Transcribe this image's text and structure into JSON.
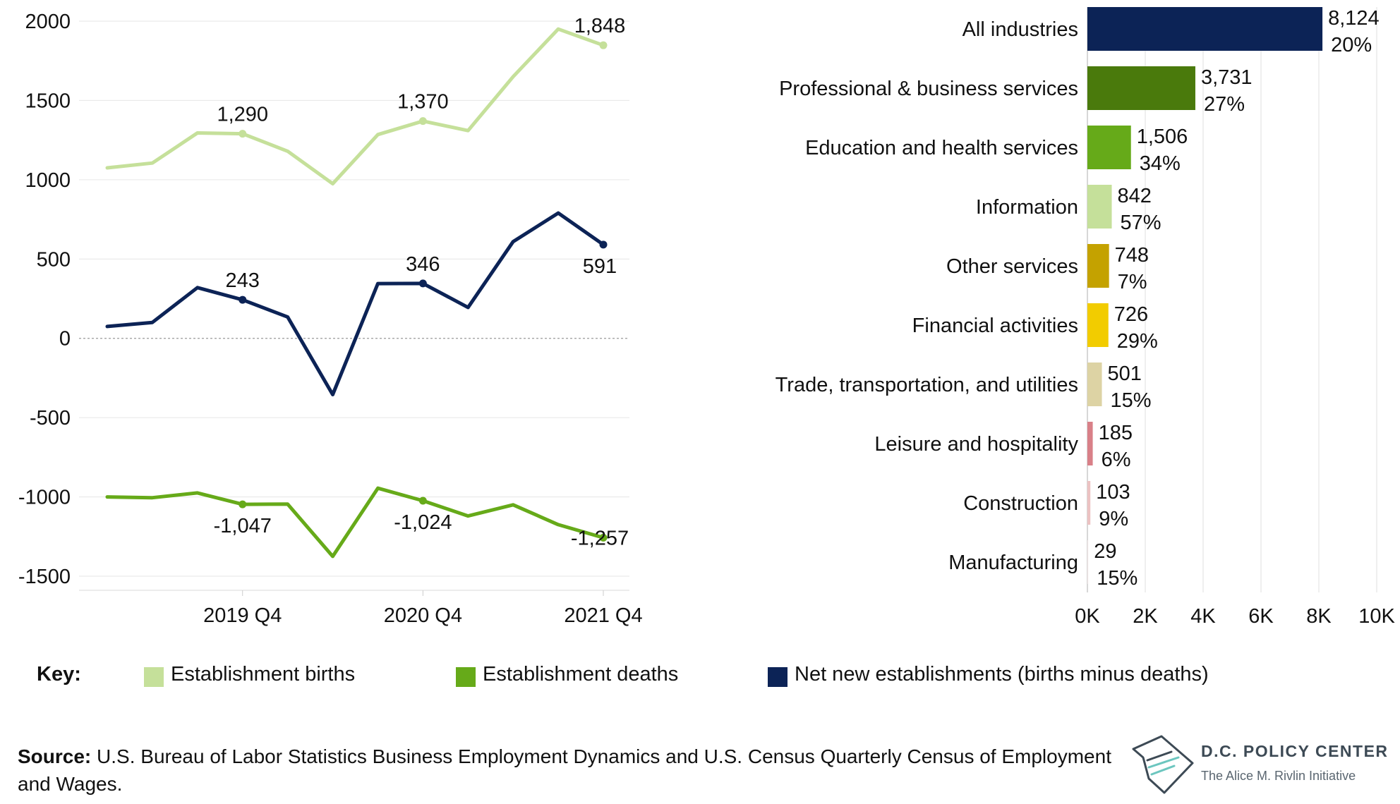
{
  "colors": {
    "births": "#c5e09a",
    "deaths": "#66aa19",
    "net": "#0c2356",
    "grid": "#e6e6e6",
    "zero_line": "#9a9a9a",
    "text": "#111111",
    "logo": "#3d4a55"
  },
  "chart_data": [
    {
      "type": "line",
      "title": "",
      "xlabel": "",
      "ylabel": "",
      "ylim": [
        -1500,
        2000
      ],
      "yticks": [
        2000,
        1500,
        1000,
        500,
        0,
        -500,
        -1000,
        -1500
      ],
      "ytick_labels": [
        "2000",
        "1500",
        "1000",
        "500",
        "0",
        "-500",
        "-1000",
        "-1500"
      ],
      "x_tick_labels": [
        {
          "index": 3,
          "label": "2019 Q4"
        },
        {
          "index": 7,
          "label": "2020 Q4"
        },
        {
          "index": 11,
          "label": "2021 Q4"
        }
      ],
      "grid": true,
      "zero_line": "dotted",
      "series": [
        {
          "key": "births",
          "values": [
            1075,
            1105,
            1295,
            1290,
            1180,
            975,
            1285,
            1370,
            1310,
            1650,
            1950,
            1848
          ],
          "annotations": [
            {
              "index": 3,
              "label": "1,290",
              "position": "above"
            },
            {
              "index": 7,
              "label": "1,370",
              "position": "above"
            },
            {
              "index": 11,
              "label": "1,848",
              "position": "above"
            }
          ]
        },
        {
          "key": "net",
          "values": [
            75,
            100,
            320,
            243,
            135,
            -355,
            345,
            346,
            195,
            610,
            790,
            591
          ],
          "annotations": [
            {
              "index": 3,
              "label": "243",
              "position": "above"
            },
            {
              "index": 7,
              "label": "346",
              "position": "above"
            },
            {
              "index": 11,
              "label": "591",
              "position": "below"
            }
          ]
        },
        {
          "key": "deaths",
          "values": [
            -1000,
            -1005,
            -975,
            -1047,
            -1045,
            -1375,
            -945,
            -1024,
            -1120,
            -1050,
            -1175,
            -1257
          ],
          "annotations": [
            {
              "index": 3,
              "label": "-1,047",
              "position": "below"
            },
            {
              "index": 7,
              "label": "-1,024",
              "position": "below"
            },
            {
              "index": 11,
              "label": "-1,257",
              "position": "center"
            }
          ]
        }
      ]
    },
    {
      "type": "bar",
      "orientation": "horizontal",
      "title": "",
      "xlabel": "",
      "ylabel": "",
      "xlim": [
        0,
        10000
      ],
      "xticks": [
        0,
        2000,
        4000,
        6000,
        8000,
        10000
      ],
      "xtick_labels": [
        "0K",
        "2K",
        "4K",
        "6K",
        "8K",
        "10K"
      ],
      "grid": true,
      "categories": [
        "All industries",
        "Professional & business services",
        "Education and health services",
        "Information",
        "Other services",
        "Financial activities",
        "Trade, transportation, and utilities",
        "Leisure and hospitality",
        "Construction",
        "Manufacturing"
      ],
      "values": [
        8124,
        3731,
        1506,
        842,
        748,
        726,
        501,
        185,
        103,
        29
      ],
      "value_labels": [
        "8,124",
        "3,731",
        "1,506",
        "842",
        "748",
        "726",
        "501",
        "185",
        "103",
        "29"
      ],
      "percent_labels": [
        "20%",
        "27%",
        "34%",
        "57%",
        "7%",
        "29%",
        "15%",
        "6%",
        "9%",
        "15%"
      ],
      "bar_colors": [
        "#0c2356",
        "#4a7a0c",
        "#66aa19",
        "#c5e09a",
        "#c4a200",
        "#f2cc00",
        "#ddd3a4",
        "#d98088",
        "#ecc2c2",
        "#f1e8e8"
      ]
    }
  ],
  "legend": {
    "title": "Key:",
    "items": [
      {
        "key": "births",
        "label": "Establishment births"
      },
      {
        "key": "deaths",
        "label": "Establishment deaths"
      },
      {
        "key": "net",
        "label": "Net new establishments (births minus deaths)"
      }
    ]
  },
  "source": {
    "label": "Source:",
    "text": " U.S. Bureau of Labor Statistics Business Employment Dynamics and U.S. Census Quarterly Census of Employment and Wages."
  },
  "logo": {
    "name": "D.C. POLICY CENTER",
    "tagline": "The Alice M. Rivlin Initiative"
  }
}
